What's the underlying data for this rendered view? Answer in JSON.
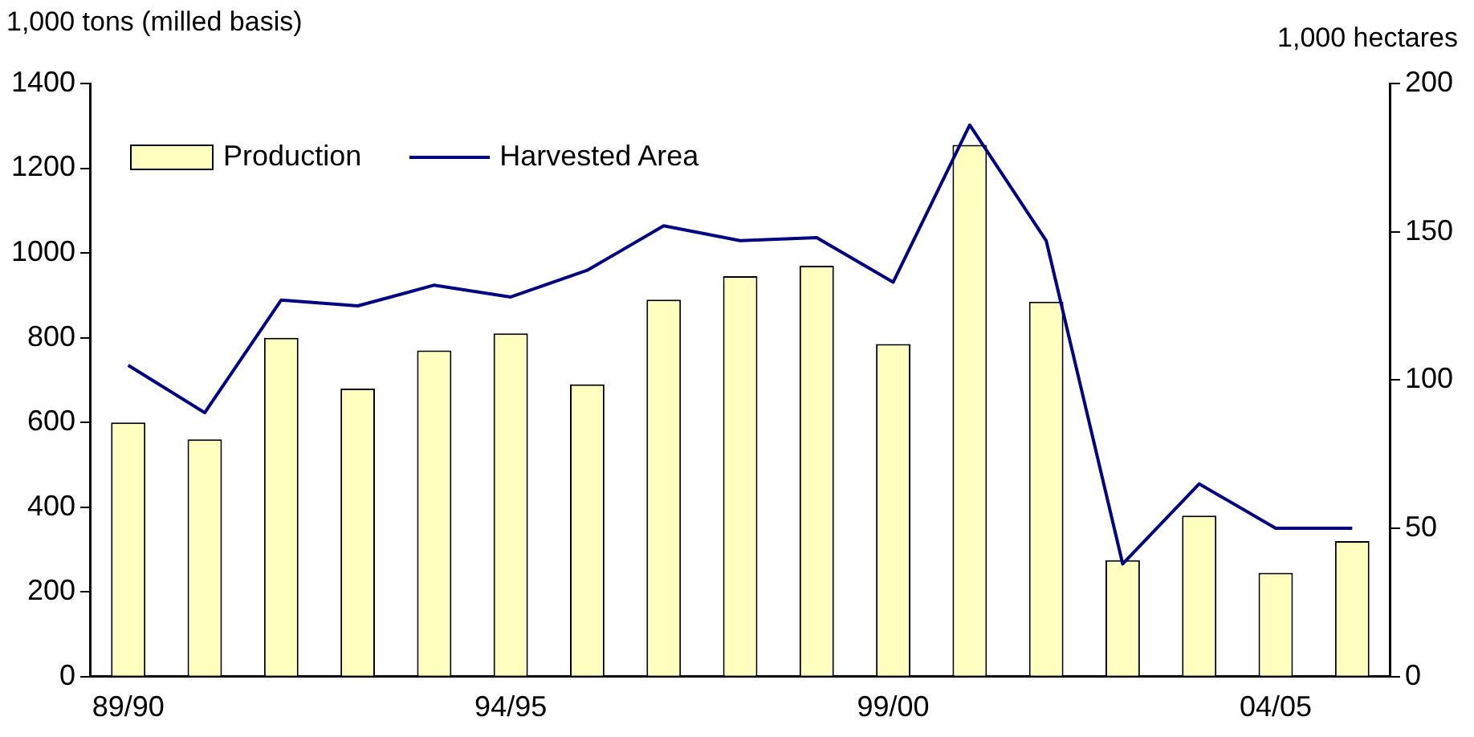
{
  "chart_data": {
    "type": "bar",
    "ylabel": "1,000 tons (milled basis)",
    "y2label": "1,000 hectares",
    "categories": [
      "89/90",
      null,
      null,
      null,
      null,
      "94/95",
      null,
      null,
      null,
      null,
      "99/00",
      null,
      null,
      null,
      null,
      "04/05",
      null
    ],
    "series": [
      {
        "name": "Production",
        "type": "bar",
        "color": "#ffffc0",
        "values": [
          600,
          560,
          800,
          680,
          770,
          810,
          690,
          890,
          945,
          970,
          785,
          1255,
          885,
          275,
          380,
          245,
          320
        ]
      },
      {
        "name": "Harvested Area",
        "type": "line",
        "axis": "y2",
        "color": "#000080",
        "marker": "none",
        "values": [
          105,
          89,
          127,
          125,
          132,
          128,
          137,
          152,
          147,
          148,
          133,
          186,
          147,
          38,
          65,
          50,
          50
        ]
      }
    ],
    "ylim": [
      0,
      1400
    ],
    "yticks": [
      0,
      200,
      400,
      600,
      800,
      1000,
      1200,
      1400
    ],
    "y2lim": [
      0,
      200
    ],
    "y2ticks": [
      0,
      50,
      100,
      150,
      200
    ],
    "grid": false,
    "legend": "top left"
  }
}
